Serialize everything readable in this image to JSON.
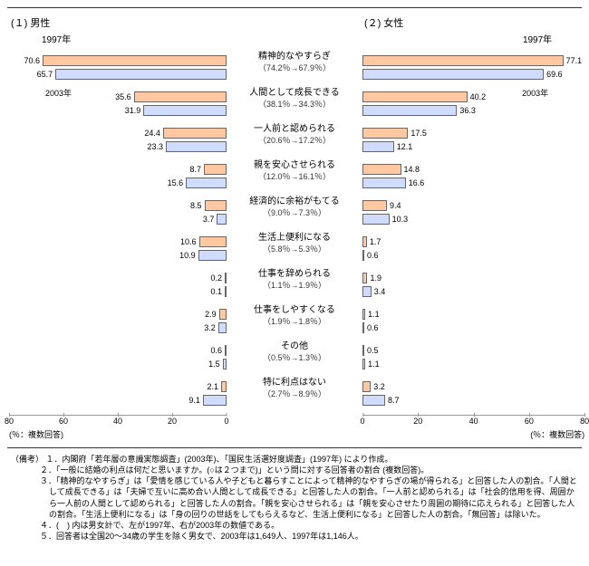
{
  "chart": {
    "type": "bar",
    "panels": {
      "left": {
        "title": "(１) 男性"
      },
      "right": {
        "title": "(２) 女性"
      }
    },
    "years": {
      "a": "1997年",
      "b": "2003年"
    },
    "axis": {
      "max": 80,
      "ticks": [
        0,
        20,
        40,
        60,
        80
      ],
      "label": "(％：複数回答)"
    },
    "colors": {
      "bar_1997": "#ffc8a0",
      "bar_2003": "#d0dcff",
      "border": "#666666",
      "grid": "#dddddd",
      "text": "#333333",
      "background": "#ffffff"
    },
    "categories": [
      {
        "name": "精神的なやすらぎ",
        "sub": "（74.2％→67.9％）",
        "male": [
          70.6,
          65.7
        ],
        "female": [
          77.1,
          69.6
        ]
      },
      {
        "name": "人間として成長できる",
        "sub": "（38.1％→34.3％）",
        "male": [
          35.6,
          31.9
        ],
        "female": [
          40.2,
          36.3
        ]
      },
      {
        "name": "一人前と認められる",
        "sub": "（20.6％→17.2％）",
        "male": [
          24.4,
          23.3
        ],
        "female": [
          17.5,
          12.1
        ]
      },
      {
        "name": "親を安心させられる",
        "sub": "（12.0％→16.1％）",
        "male": [
          8.7,
          15.6
        ],
        "female": [
          14.8,
          16.6
        ]
      },
      {
        "name": "経済的に余裕がもてる",
        "sub": "（9.0％→7.3％）",
        "male": [
          8.5,
          3.7
        ],
        "female": [
          9.4,
          10.3
        ]
      },
      {
        "name": "生活上便利になる",
        "sub": "（5.8％→5.3％）",
        "male": [
          10.6,
          10.9
        ],
        "female": [
          1.7,
          0.6
        ]
      },
      {
        "name": "仕事を辞められる",
        "sub": "（1.1％→1.9％）",
        "male": [
          0.2,
          0.1
        ],
        "female": [
          1.9,
          3.4
        ]
      },
      {
        "name": "仕事をしやすくなる",
        "sub": "（1.9％→1.8％）",
        "male": [
          2.9,
          3.2
        ],
        "female": [
          1.1,
          0.6
        ]
      },
      {
        "name": "その他",
        "sub": "（0.5％→1.3％）",
        "male": [
          0.6,
          1.5
        ],
        "female": [
          0.5,
          1.1
        ]
      },
      {
        "name": "特に利点はない",
        "sub": "（2.7％→8.9％）",
        "male": [
          2.1,
          9.1
        ],
        "female": [
          3.2,
          8.7
        ]
      }
    ]
  },
  "notes": {
    "header": "（備考）",
    "items": [
      "１．内閣府「若年層の意識実態調査」(2003年)、「国民生活選好度調査」(1997年) により作成。",
      "２．「一般に結婚の利点は何だと思いますか。(○は２つまで)」という問に対する回答者の割合 (複数回答)。",
      "３．「精神的なやすらぎ」は「愛情を感じている人や子どもと暮らすことによって精神的なやすらぎの場が得られる」と回答した人の割合。「人間として成長できる」は「夫婦で互いに高め合い人間として成長できる」と回答した人の割合。「一人前と認められる」は「社会的信用を得、周囲から一人前の人間として認められる」と回答した人の割合。「親を安心させられる」は「親を安心させたり周囲の期待に応えられる」と回答した人の割合。「生活上便利になる」は「身の回りの世話をしてもらえるなど、生活上便利になる」と回答した人の割合。「無回答」は除いた。",
      "４．(　) 内は男女計で、左が1997年、右が2003年の数値である。",
      "５．回答者は全国20～34歳の学生を除く男女で、2003年は1,649人、1997年は1,146人。"
    ]
  }
}
